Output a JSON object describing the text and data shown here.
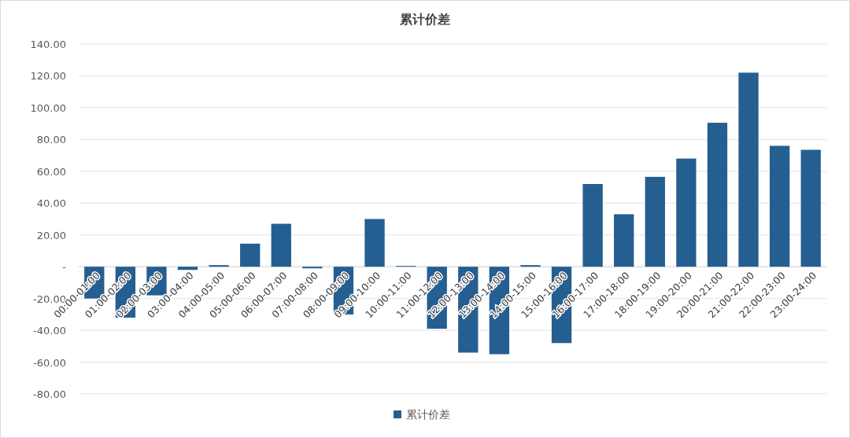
{
  "chart_data": {
    "type": "bar",
    "title": "累计价差",
    "categories": [
      "00:00-01:00",
      "01:00-02:00",
      "02:00-03:00",
      "03:00-04:00",
      "04:00-05:00",
      "05:00-06:00",
      "06:00-07:00",
      "07:00-08:00",
      "08:00-09:00",
      "09:00-10:00",
      "10:00-11:00",
      "11:00-12:00",
      "12:00-13:00",
      "13:00-14:00",
      "14:00-15:00",
      "15:00-16:00",
      "16:00-17:00",
      "17:00-18:00",
      "18:00-19:00",
      "19:00-20:00",
      "20:00-21:00",
      "21:00-22:00",
      "22:00-23:00",
      "23:00-24:00"
    ],
    "series": [
      {
        "name": "累计价差",
        "color": "#255e91",
        "values": [
          -20,
          -32,
          -18,
          -2,
          1,
          14.5,
          27,
          -1,
          -30,
          30,
          0.5,
          -39,
          -54,
          -55,
          1,
          -48,
          52,
          33,
          56.5,
          68,
          90.5,
          122,
          76,
          73.5
        ]
      }
    ],
    "ylim": [
      -80,
      140
    ],
    "yticks": [
      {
        "value": -80,
        "label": "-80.00"
      },
      {
        "value": -60,
        "label": "-60.00"
      },
      {
        "value": -40,
        "label": "-40.00"
      },
      {
        "value": -20,
        "label": "-20.00"
      },
      {
        "value": 0,
        "label": "-"
      },
      {
        "value": 20,
        "label": "20.00"
      },
      {
        "value": 40,
        "label": "40.00"
      },
      {
        "value": 60,
        "label": "60.00"
      },
      {
        "value": 80,
        "label": "80.00"
      },
      {
        "value": 100,
        "label": "100.00"
      },
      {
        "value": 120,
        "label": "120.00"
      },
      {
        "value": 140,
        "label": "140.00"
      }
    ],
    "grid": "y",
    "legend": "bottom"
  }
}
